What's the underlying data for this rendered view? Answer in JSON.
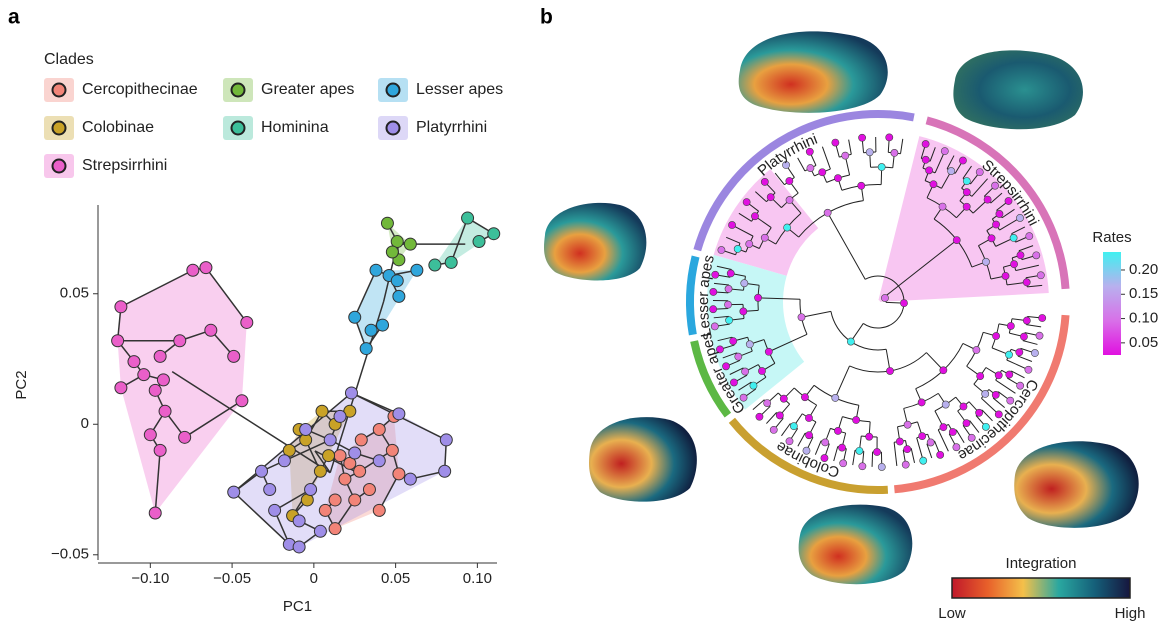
{
  "panel_labels": [
    "a",
    "b"
  ],
  "chart_data": [
    {
      "type": "scatter",
      "xlabel": "PC1",
      "ylabel": "PC2",
      "legend_title": "Clades",
      "xlim": [
        -0.132,
        0.112
      ],
      "ylim": [
        -0.052,
        0.084
      ],
      "xticks": [
        {
          "value": -0.1,
          "label": "−0.10"
        },
        {
          "value": -0.05,
          "label": "−0.05"
        },
        0,
        0.05,
        {
          "value": 0.1,
          "label": "0.10"
        }
      ],
      "yticks": [
        {
          "value": -0.05,
          "label": "−0.05"
        },
        0,
        0.05
      ],
      "series": [
        {
          "name": "Cercopithecinae",
          "color": "#f28478",
          "x": [
            0.049,
            0.04,
            0.048,
            0.052,
            0.04,
            0.028,
            0.019,
            0.025,
            0.013,
            0.007,
            0.016,
            0.034,
            0.022,
            0.029,
            0.013
          ],
          "values": [
            0.003,
            -0.002,
            -0.01,
            -0.019,
            -0.033,
            -0.018,
            -0.021,
            -0.029,
            -0.04,
            -0.033,
            -0.012,
            -0.025,
            -0.015,
            -0.006,
            -0.029
          ]
        },
        {
          "name": "Greater apes",
          "color": "#72b83a",
          "x": [
            0.045,
            0.051,
            0.059,
            0.052,
            0.048
          ],
          "values": [
            0.077,
            0.07,
            0.069,
            0.063,
            0.066
          ]
        },
        {
          "name": "Lesser apes",
          "color": "#2fa6dc",
          "x": [
            0.025,
            0.032,
            0.038,
            0.046,
            0.052,
            0.042,
            0.035,
            0.063,
            0.051
          ],
          "values": [
            0.041,
            0.029,
            0.059,
            0.057,
            0.049,
            0.038,
            0.036,
            0.059,
            0.055
          ]
        },
        {
          "name": "Colobinae",
          "color": "#c9a227",
          "x": [
            0.005,
            0.022,
            -0.005,
            0.013,
            -0.015,
            0.004,
            -0.013,
            -0.004,
            -0.009,
            0.009
          ],
          "values": [
            0.005,
            0.005,
            -0.006,
            0.0,
            -0.01,
            -0.018,
            -0.035,
            -0.029,
            -0.002,
            -0.012
          ]
        },
        {
          "name": "Hominina",
          "color": "#3cbf9a",
          "x": [
            0.094,
            0.11,
            0.084,
            0.074,
            0.101
          ],
          "values": [
            0.079,
            0.073,
            0.062,
            0.061,
            0.07
          ]
        },
        {
          "name": "Platyrrhini",
          "color": "#9f8ee8",
          "x": [
            0.023,
            0.081,
            0.08,
            0.052,
            -0.049,
            -0.015,
            -0.009,
            0.004,
            -0.024,
            -0.002,
            -0.032,
            -0.018,
            0.01,
            -0.005,
            0.025,
            0.04,
            0.059,
            0.016,
            -0.027,
            -0.009
          ],
          "values": [
            0.012,
            -0.006,
            -0.018,
            0.004,
            -0.026,
            -0.046,
            -0.047,
            -0.041,
            -0.033,
            -0.025,
            -0.018,
            -0.014,
            -0.006,
            -0.002,
            -0.011,
            -0.014,
            -0.021,
            0.003,
            -0.025,
            -0.037
          ]
        },
        {
          "name": "Strepsirrhini",
          "color": "#ea5fc9",
          "x": [
            -0.118,
            -0.074,
            -0.066,
            -0.041,
            -0.12,
            -0.082,
            -0.11,
            -0.094,
            -0.104,
            -0.092,
            -0.097,
            -0.091,
            -0.1,
            -0.079,
            -0.094,
            -0.044,
            -0.097,
            -0.118,
            -0.063,
            -0.049
          ],
          "values": [
            0.045,
            0.059,
            0.06,
            0.039,
            0.032,
            0.032,
            0.024,
            0.026,
            0.019,
            0.017,
            0.013,
            0.005,
            -0.004,
            -0.005,
            -0.01,
            0.009,
            -0.034,
            0.014,
            0.036,
            0.026
          ]
        }
      ]
    },
    {
      "type": "tree",
      "clades": [
        {
          "name": "Platyrrhini",
          "color": "#9b86e0"
        },
        {
          "name": "Strepsirrhini",
          "color": "#d874b8"
        },
        {
          "name": "Cercopithecinae",
          "color": "#f07a70"
        },
        {
          "name": "Colobinae",
          "color": "#c9a030"
        },
        {
          "name": "Greater apes",
          "color": "#5cb844"
        },
        {
          "name": "Lesser apes",
          "color": "#2aa7de"
        }
      ]
    },
    {
      "type": "colorbar",
      "title": "Rates",
      "lim": [
        0.025,
        0.237
      ],
      "ticks": [
        0.05,
        {
          "value": 0.1,
          "label": "0.10"
        },
        0.15,
        {
          "value": 0.2,
          "label": "0.20"
        }
      ],
      "colors": [
        "#e010e0",
        "#d870e8",
        "#b8b0ee",
        "#40f0f0"
      ]
    },
    {
      "type": "colorbar",
      "title": "Integration",
      "low_label": "Low",
      "high_label": "High",
      "colors": [
        "#c0182a",
        "#e8602a",
        "#f4c04a",
        "#2aa7a0",
        "#15607a",
        "#16163e"
      ]
    }
  ]
}
